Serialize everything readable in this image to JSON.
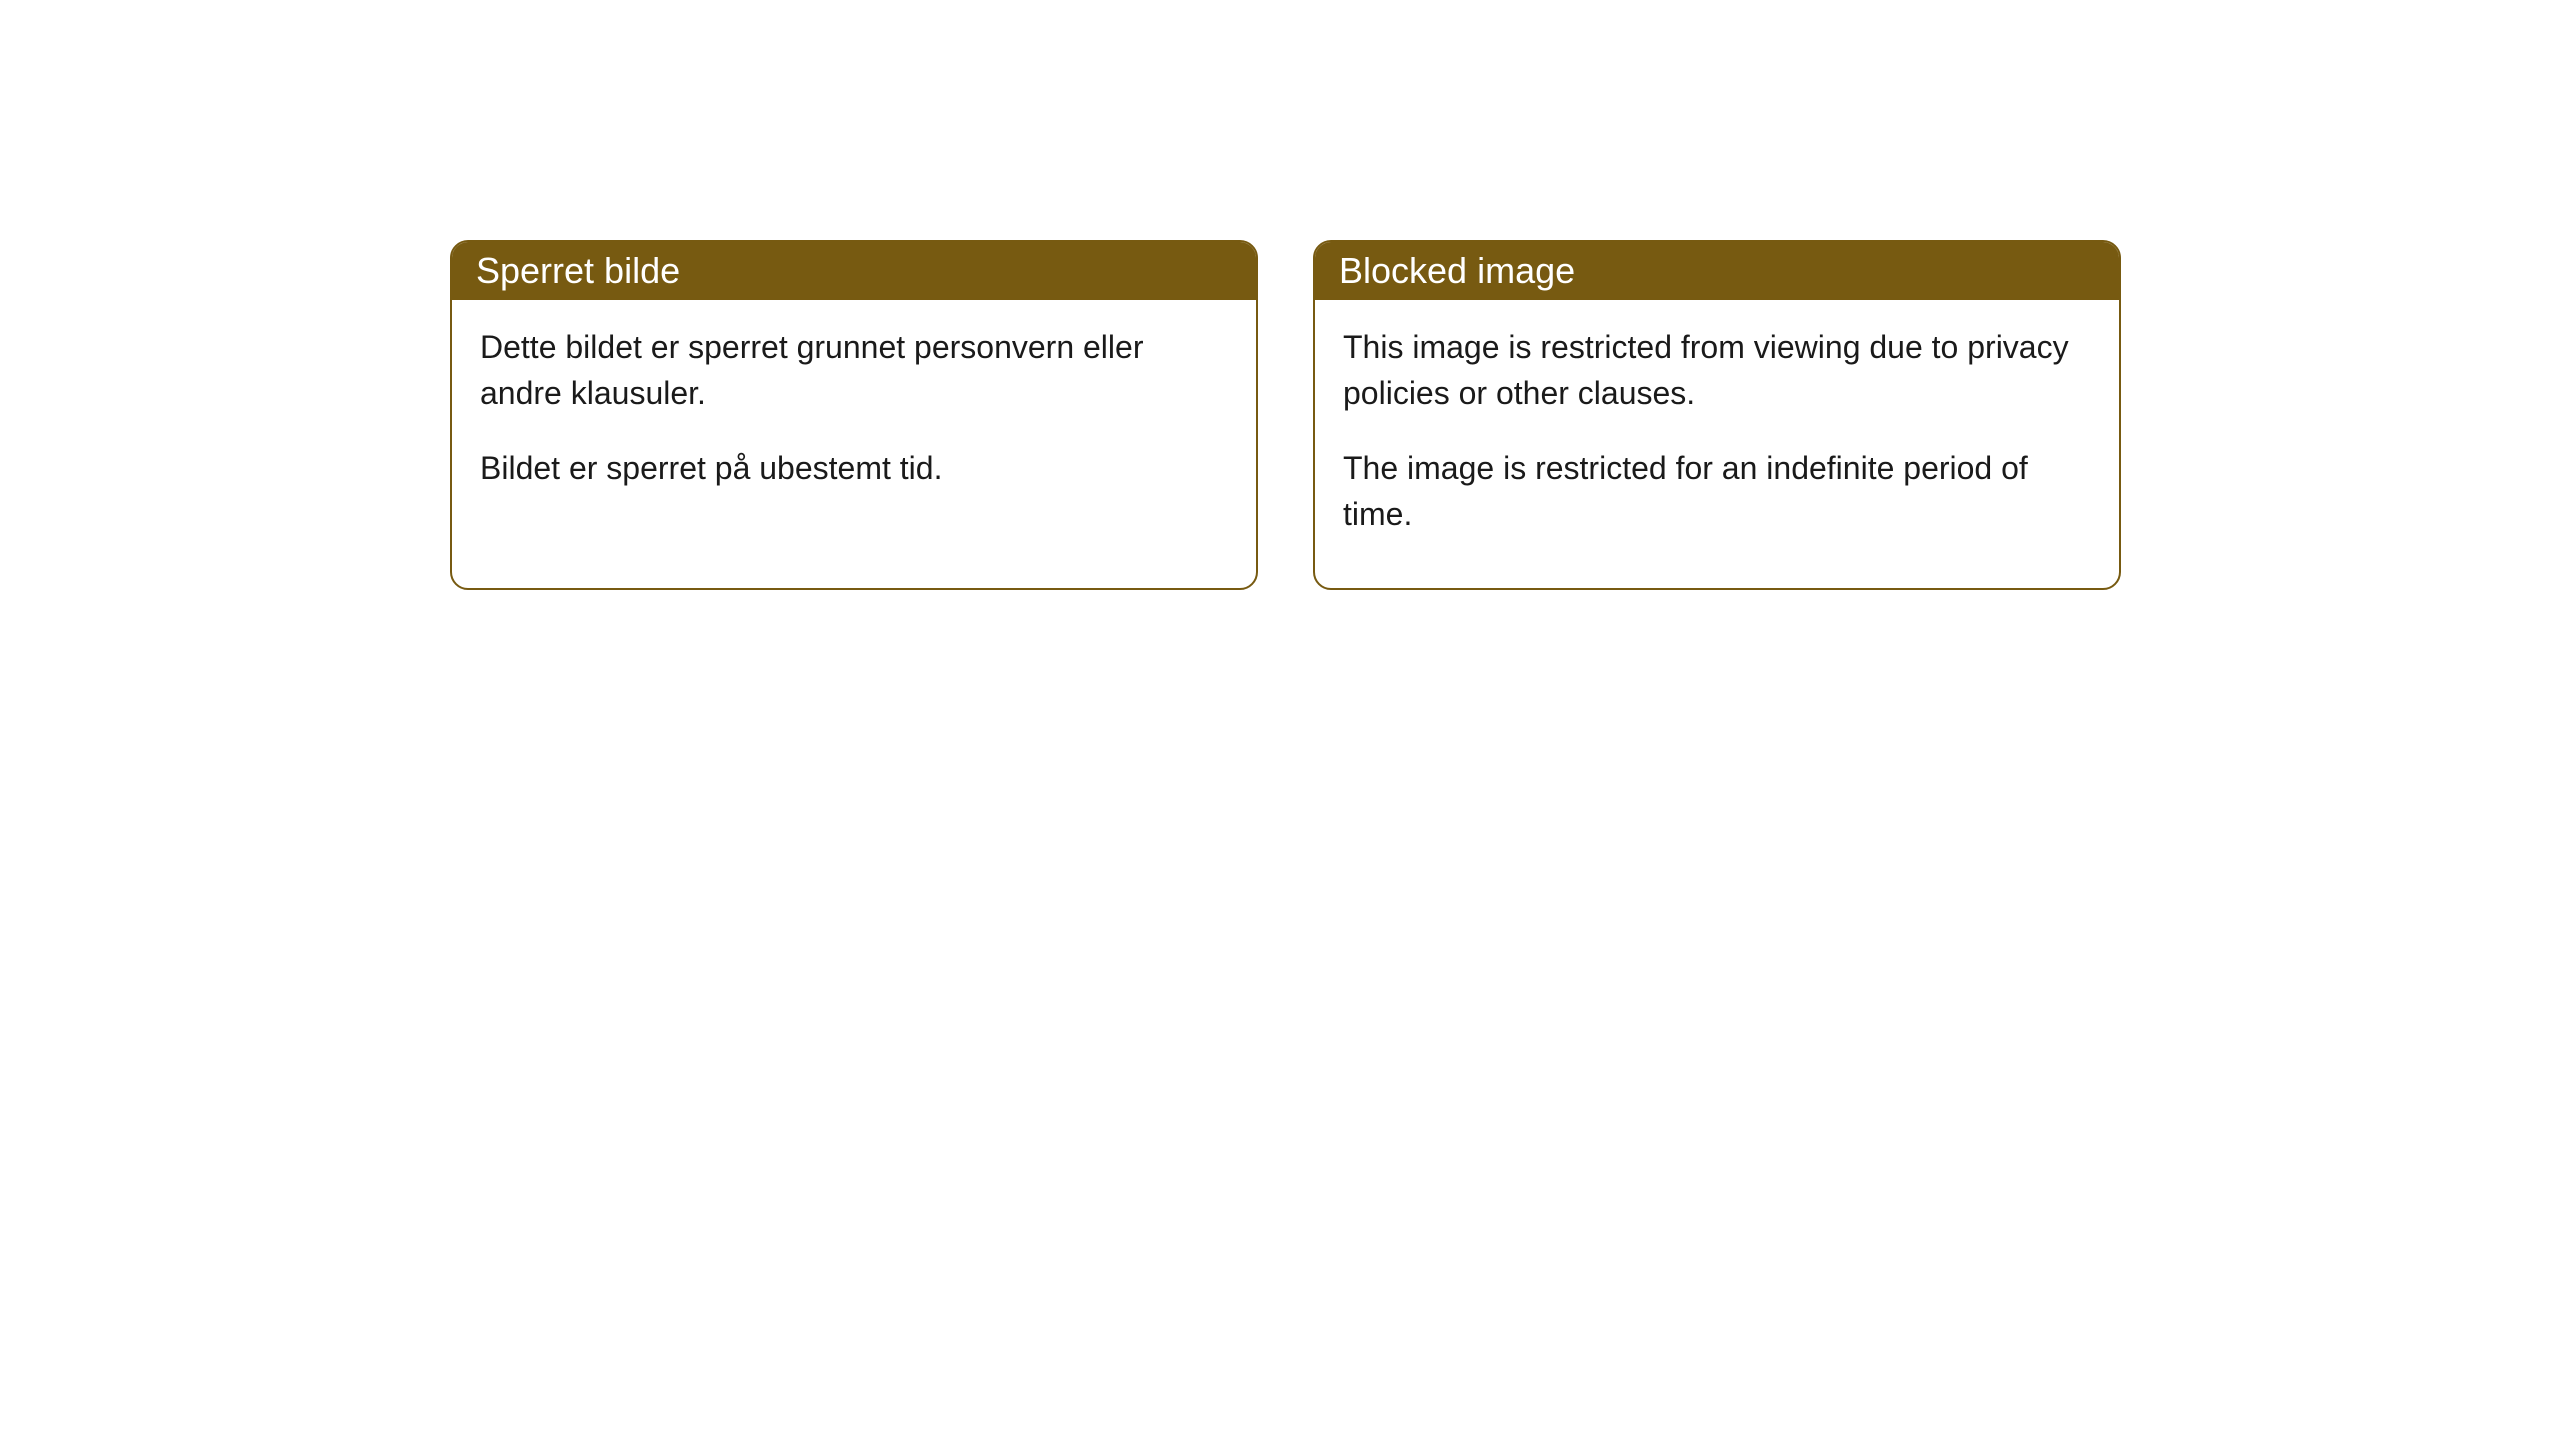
{
  "cards": [
    {
      "title": "Sperret bilde",
      "paragraph1": "Dette bildet er sperret grunnet personvern eller andre klausuler.",
      "paragraph2": "Bildet er sperret på ubestemt tid."
    },
    {
      "title": "Blocked image",
      "paragraph1": "This image is restricted from viewing due to privacy policies or other clauses.",
      "paragraph2": "The image is restricted for an indefinite period of time."
    }
  ],
  "styling": {
    "header_background": "#775a11",
    "header_text_color": "#ffffff",
    "border_color": "#775a11",
    "body_background": "#ffffff",
    "body_text_color": "#1a1a1a",
    "border_radius": 18,
    "title_fontsize": 36,
    "body_fontsize": 32
  }
}
